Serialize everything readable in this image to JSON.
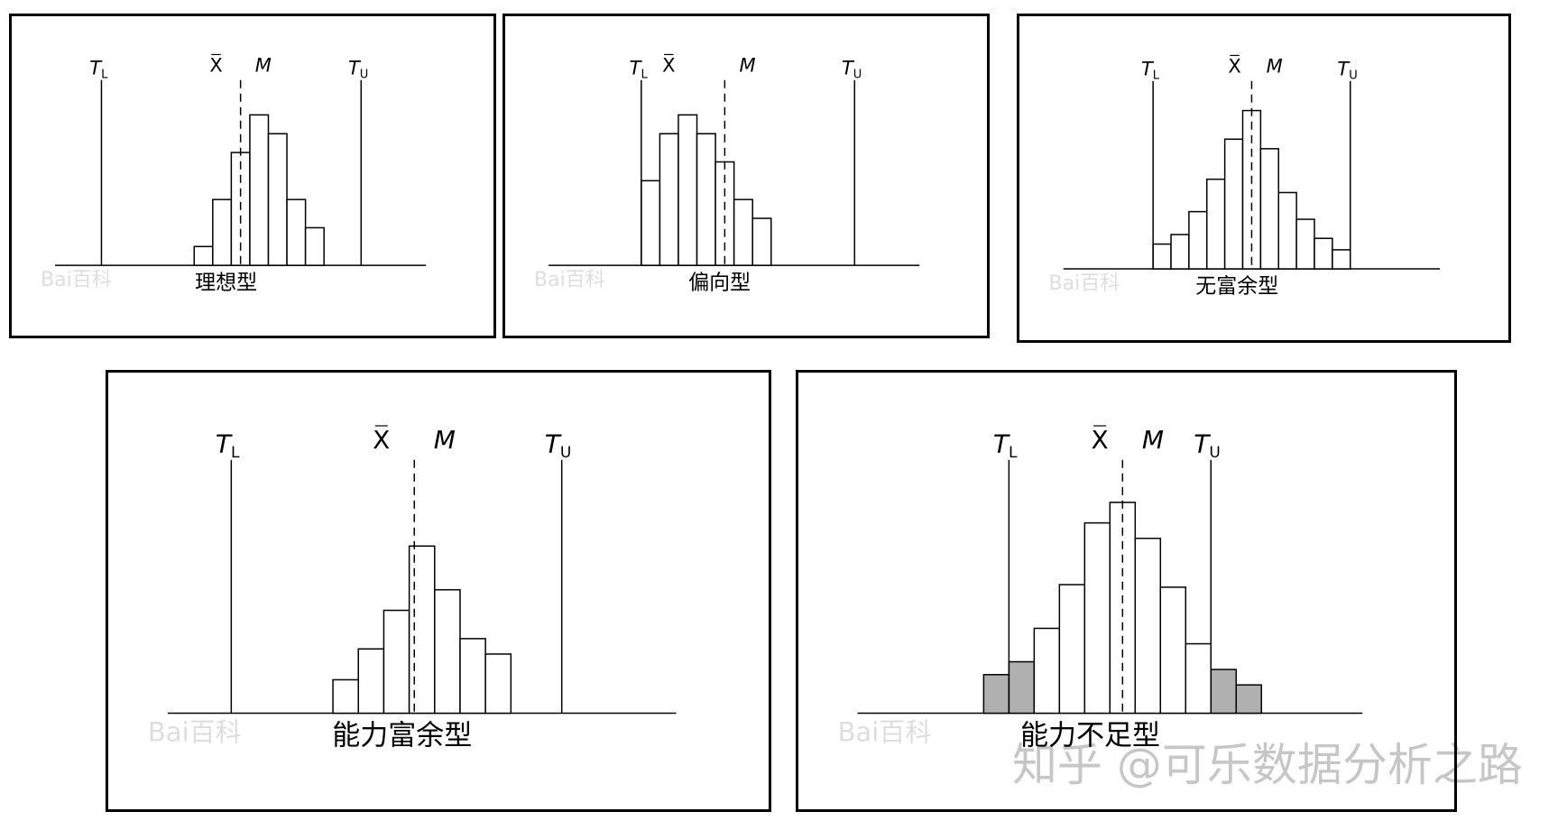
{
  "watermark": "知乎 @可乐数据分析之路",
  "panel_watermark": "Bai百科",
  "symbols": {
    "t_lower": "T",
    "t_lower_sub": "L",
    "t_upper": "T",
    "t_upper_sub": "U",
    "mean": "X",
    "median": "M"
  },
  "chart_data": [
    {
      "type": "bar",
      "title": "理想型",
      "values": [
        1,
        3.5,
        6,
        8,
        7,
        3.5,
        2
      ],
      "ylim": [
        0,
        9
      ],
      "xlim": [
        0,
        20
      ],
      "bins_start": 7.5,
      "bin_width": 1,
      "tl": 2.5,
      "tu": 16.5,
      "mean": 9.6,
      "median": 10,
      "highlighted": []
    },
    {
      "type": "bar",
      "title": "偏向型",
      "values": [
        4.5,
        7,
        8,
        7,
        5.5,
        3.5,
        2.5
      ],
      "ylim": [
        0,
        9
      ],
      "xlim": [
        0,
        20
      ],
      "bins_start": 5,
      "bin_width": 1,
      "tl": 5,
      "tu": 16.5,
      "mean": 7.4,
      "median": 9.5,
      "highlighted": []
    },
    {
      "type": "bar",
      "title": "无富余型",
      "values": [
        1.3,
        1.8,
        3,
        4.7,
        6.8,
        8.3,
        6.3,
        4,
        2.6,
        1.6,
        1
      ],
      "ylim": [
        0,
        9
      ],
      "xlim": [
        0,
        21
      ],
      "bins_start": 5,
      "bin_width": 1,
      "tl": 5,
      "tu": 16,
      "mean": 10.5,
      "median": 10.5,
      "highlighted": []
    },
    {
      "type": "bar",
      "title": "能力富余型",
      "values": [
        1.3,
        2.5,
        4,
        6.5,
        4.8,
        2.9,
        2.3
      ],
      "ylim": [
        0,
        9
      ],
      "xlim": [
        0,
        20
      ],
      "bins_start": 6.5,
      "bin_width": 1,
      "tl": 2.5,
      "tu": 15.5,
      "mean": 9.3,
      "median": 9.7,
      "highlighted": []
    },
    {
      "type": "bar",
      "title": "能力不足型",
      "values": [
        1.5,
        2,
        3.3,
        5,
        7.4,
        8.2,
        6.8,
        4.9,
        2.7,
        1.7,
        1.1
      ],
      "ylim": [
        0,
        9
      ],
      "xlim": [
        0,
        20
      ],
      "bins_start": 5,
      "bin_width": 1,
      "tl": 6,
      "tu": 14,
      "mean": 10.5,
      "median": 10.5,
      "highlighted": [
        0,
        1,
        9,
        10
      ]
    }
  ]
}
